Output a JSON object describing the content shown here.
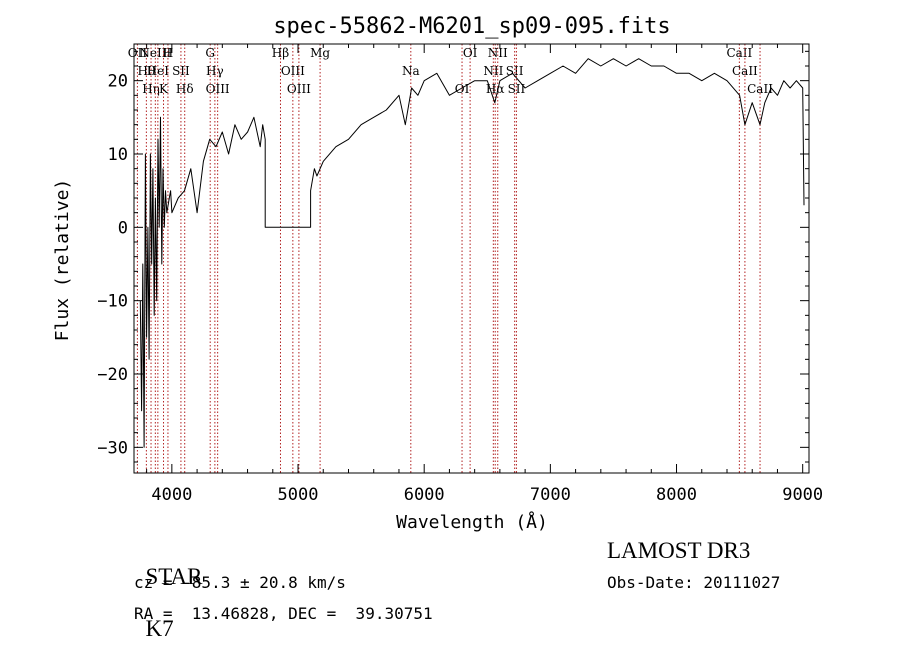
{
  "chart_data": {
    "type": "line",
    "title": "spec-55862-M6201_sp09-095.fits",
    "xlabel": "Wavelength (Å)",
    "ylabel": "Flux (relative)",
    "xlim": [
      3700,
      9050
    ],
    "ylim": [
      -33.5,
      25
    ],
    "x_ticks": [
      4000,
      5000,
      6000,
      7000,
      8000,
      9000
    ],
    "x_tick_labels": [
      "4000",
      "5000",
      "6000",
      "7000",
      "8000",
      "9000"
    ],
    "y_ticks": [
      -30,
      -20,
      -10,
      0,
      10,
      20
    ],
    "y_tick_labels": [
      "−30",
      "−20",
      "−10",
      "0",
      "10",
      "20"
    ],
    "series": [
      {
        "name": "spectrum",
        "x": [
          3750,
          3760,
          3770,
          3780,
          3790,
          3800,
          3810,
          3820,
          3830,
          3840,
          3850,
          3860,
          3870,
          3880,
          3890,
          3900,
          3910,
          3920,
          3930,
          3940,
          3950,
          3960,
          3970,
          3980,
          3990,
          4000,
          4050,
          4100,
          4150,
          4200,
          4250,
          4300,
          4350,
          4400,
          4450,
          4500,
          4550,
          4600,
          4650,
          4700,
          4720,
          4740,
          4740,
          5100,
          5100,
          5130,
          5150,
          5200,
          5300,
          5400,
          5500,
          5600,
          5700,
          5800,
          5850,
          5900,
          5950,
          6000,
          6100,
          6200,
          6300,
          6400,
          6500,
          6560,
          6600,
          6700,
          6800,
          6900,
          7000,
          7100,
          7200,
          7300,
          7400,
          7500,
          7600,
          7700,
          7800,
          7900,
          8000,
          8100,
          8200,
          8300,
          8400,
          8500,
          8542,
          8600,
          8662,
          8700,
          8750,
          8800,
          8850,
          8900,
          8950,
          9000,
          9010
        ],
        "y": [
          -10,
          -25,
          -5,
          -30,
          10,
          -15,
          0,
          -18,
          10,
          -5,
          8,
          -12,
          4,
          -10,
          12,
          0,
          15,
          -5,
          8,
          0,
          5,
          2,
          3,
          4,
          5,
          2,
          4,
          5,
          8,
          2,
          9,
          12,
          11,
          13,
          10,
          14,
          12,
          13,
          15,
          11,
          14,
          12,
          0,
          0,
          5,
          8,
          7,
          9,
          11,
          12,
          14,
          15,
          16,
          18,
          14,
          19,
          18,
          20,
          21,
          18,
          19,
          20,
          20,
          17,
          20,
          21,
          19,
          20,
          21,
          22,
          21,
          23,
          22,
          23,
          22,
          23,
          22,
          22,
          21,
          21,
          20,
          21,
          20,
          18,
          14,
          17,
          14,
          17,
          19,
          18,
          20,
          19,
          20,
          19,
          3
        ]
      }
    ],
    "line_markers": [
      {
        "wavelength": 3727,
        "label": "OII"
      },
      {
        "wavelength": 3798,
        "label": "Hθ"
      },
      {
        "wavelength": 3835,
        "label": "Hη"
      },
      {
        "wavelength": 3869,
        "label": "NeIII"
      },
      {
        "wavelength": 3889,
        "label": "HeI"
      },
      {
        "wavelength": 3934,
        "label": "K"
      },
      {
        "wavelength": 3969,
        "label": "H"
      },
      {
        "wavelength": 4072,
        "label": "SII"
      },
      {
        "wavelength": 4102,
        "label": "Hδ"
      },
      {
        "wavelength": 4304,
        "label": "G"
      },
      {
        "wavelength": 4341,
        "label": "Hγ"
      },
      {
        "wavelength": 4363,
        "label": "OIII"
      },
      {
        "wavelength": 4861,
        "label": "Hβ"
      },
      {
        "wavelength": 4959,
        "label": "OIII"
      },
      {
        "wavelength": 5007,
        "label": "OIII"
      },
      {
        "wavelength": 5175,
        "label": "Mg"
      },
      {
        "wavelength": 5894,
        "label": "Na"
      },
      {
        "wavelength": 6300,
        "label": "OI"
      },
      {
        "wavelength": 6364,
        "label": "OI"
      },
      {
        "wavelength": 6548,
        "label": "NII"
      },
      {
        "wavelength": 6563,
        "label": "Hα"
      },
      {
        "wavelength": 6583,
        "label": "NII"
      },
      {
        "wavelength": 6717,
        "label": "SII"
      },
      {
        "wavelength": 6731,
        "label": "SII"
      },
      {
        "wavelength": 8498,
        "label": "CaII"
      },
      {
        "wavelength": 8542,
        "label": "CaII"
      },
      {
        "wavelength": 8662,
        "label": "CaII"
      }
    ],
    "grid": false,
    "colors": {
      "line": "#000000",
      "marker": "#b22222",
      "axis": "#000000",
      "background": "#ffffff"
    }
  },
  "footer": {
    "class_label": "STAR",
    "subclass": "K7",
    "survey": "LAMOST DR3",
    "redshift": "cz = -85.3 ± 20.8 km/s",
    "obs_date": "Obs-Date: 20111027",
    "coordinates": "RA =  13.46828, DEC =  39.30751"
  }
}
